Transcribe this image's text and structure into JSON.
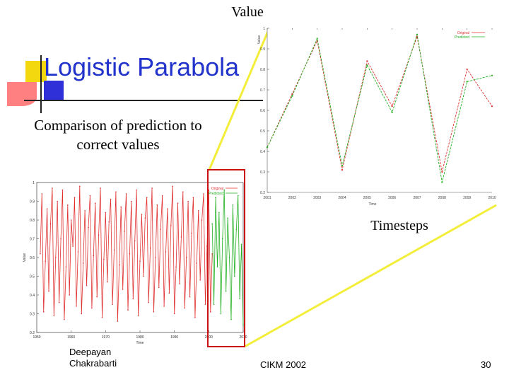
{
  "slide": {
    "title": "Logistic Parabola",
    "subtitle": "Comparison of prediction to correct values",
    "value_label": "Value",
    "timesteps_label": "Timesteps",
    "footer_author": "Deepayan Chakrabarti",
    "footer_venue": "CIKM 2002",
    "footer_page": "30"
  },
  "colors": {
    "original": "#e03030",
    "predicted": "#22b022",
    "title": "#2233cc",
    "callout": "#f2ee3a",
    "highlight": "#cc1111"
  },
  "chart_data": [
    {
      "type": "line",
      "title": "",
      "xlabel": "Time",
      "ylabel": "Value",
      "xlim": [
        1950,
        2010
      ],
      "ylim": [
        0.2,
        1
      ],
      "x_ticks": [
        1950,
        1960,
        1970,
        1980,
        1990,
        2000,
        2010
      ],
      "y_ticks": [
        0.2,
        0.3,
        0.4,
        0.5,
        0.6,
        0.7,
        0.8,
        0.9,
        1
      ],
      "legend": [
        "Original",
        "Predicted"
      ],
      "legend_position": "top-right",
      "series": [
        {
          "name": "Original",
          "x_start": 1951,
          "x_step": 0.5,
          "values": [
            0.62,
            0.94,
            0.31,
            0.58,
            0.86,
            0.42,
            0.78,
            0.97,
            0.29,
            0.6,
            0.9,
            0.36,
            0.7,
            0.96,
            0.27,
            0.55,
            0.88,
            0.4,
            0.8,
            0.66,
            0.92,
            0.34,
            0.63,
            0.98,
            0.3,
            0.57,
            0.85,
            0.45,
            0.76,
            0.93,
            0.33,
            0.61,
            0.89,
            0.39,
            0.72,
            0.97,
            0.28,
            0.59,
            0.84,
            0.47,
            0.79,
            0.91,
            0.35,
            0.64,
            0.95,
            0.26,
            0.56,
            0.87,
            0.43,
            0.74,
            0.94,
            0.32,
            0.62,
            0.9,
            0.38,
            0.69,
            0.96,
            0.29,
            0.58,
            0.83,
            0.5,
            0.81,
            0.92,
            0.36,
            0.65,
            0.97,
            0.31,
            0.6,
            0.88,
            0.44,
            0.75,
            0.93,
            0.34,
            0.63,
            0.86,
            0.41,
            0.77,
            0.98,
            0.3,
            0.55,
            0.89,
            0.46,
            0.71,
            0.95,
            0.33,
            0.6,
            0.9,
            0.39,
            0.73,
            0.92,
            0.28,
            0.57,
            0.85,
            0.48,
            0.8,
            0.94,
            0.35,
            0.66,
            0.96,
            0.31,
            0.62
          ]
        },
        {
          "name": "Predicted",
          "x_start": 2001,
          "x_step": 0.5,
          "values": [
            0.78,
            0.35,
            0.92,
            0.55,
            0.84,
            0.3,
            0.7,
            0.96,
            0.42,
            0.81,
            0.6,
            0.27,
            0.88,
            0.5,
            0.75,
            0.93,
            0.38,
            0.67,
            0.24
          ]
        }
      ]
    },
    {
      "type": "line",
      "title": "",
      "xlabel": "Time",
      "ylabel": "Value",
      "xlim": [
        2001,
        2010
      ],
      "ylim": [
        0.2,
        1
      ],
      "y_ticks": [
        0.2,
        0.3,
        0.4,
        0.5,
        0.6,
        0.7,
        0.8,
        0.9,
        1
      ],
      "legend": [
        "Original",
        "Predicted"
      ],
      "legend_position": "top-right",
      "series": [
        {
          "name": "Original",
          "x": [
            2001,
            2002,
            2003,
            2004,
            2005,
            2006,
            2007,
            2008,
            2009,
            2010
          ],
          "values": [
            0.42,
            0.68,
            0.94,
            0.31,
            0.84,
            0.62,
            0.96,
            0.3,
            0.8,
            0.62
          ]
        },
        {
          "name": "Predicted",
          "x": [
            2001,
            2002,
            2003,
            2004,
            2005,
            2006,
            2007,
            2008,
            2009,
            2010
          ],
          "values": [
            0.42,
            0.67,
            0.95,
            0.33,
            0.82,
            0.59,
            0.97,
            0.25,
            0.74,
            0.77
          ]
        }
      ]
    }
  ]
}
